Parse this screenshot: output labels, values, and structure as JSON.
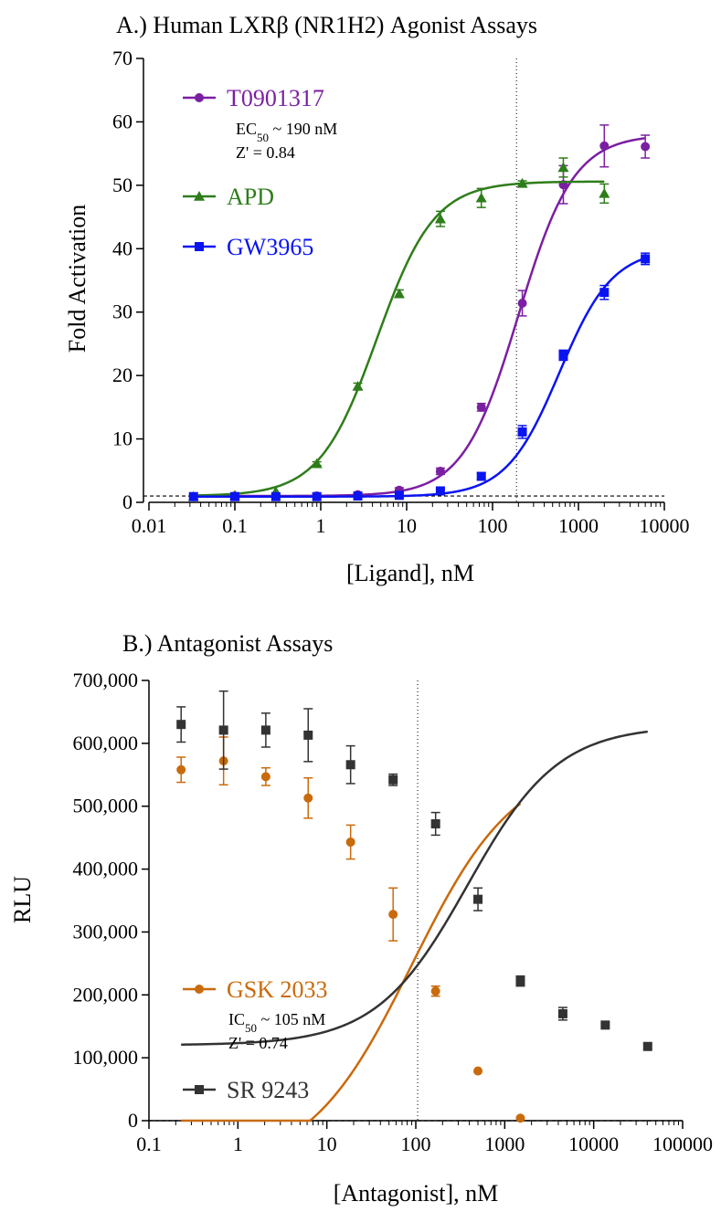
{
  "chart_data": [
    {
      "type": "scatter",
      "title": "A.)  Human LXRβ (NR1H2) Agonist Assays",
      "xlabel": "[Ligand], nM",
      "ylabel": "Fold Activation",
      "xscale": "log",
      "xlim": [
        0.01,
        10000
      ],
      "ylim": [
        0,
        70
      ],
      "xticks": [
        0.01,
        0.1,
        1,
        10,
        100,
        1000,
        10000
      ],
      "xtick_labels": [
        "0.01",
        "0.1",
        "1",
        "10",
        "100",
        "1000",
        "10000"
      ],
      "yticks": [
        0,
        10,
        20,
        30,
        40,
        50,
        60,
        70
      ],
      "ytick_labels": [
        "0",
        "10",
        "20",
        "30",
        "40",
        "50",
        "60",
        "70"
      ],
      "baseline_y": 1,
      "vline_x": 190,
      "legend_position": "top-left",
      "annotation_lines": [
        {
          "main": "EC",
          "sub": "50",
          "rest": " ~ 190 nM"
        },
        {
          "main": "Z' = 0.84",
          "sub": "",
          "rest": ""
        }
      ],
      "series": [
        {
          "name": "T0901317",
          "color": "#7b1fa2",
          "marker": "circle",
          "x": [
            0.033,
            0.1,
            0.3,
            0.9,
            2.7,
            8.2,
            24.7,
            74,
            222,
            667,
            2000,
            6000
          ],
          "y": [
            0.9,
            1.0,
            1.0,
            1.0,
            1.2,
            1.9,
            4.9,
            15.0,
            31.4,
            50.1,
            56.2,
            56.1
          ],
          "err": [
            0,
            0,
            0,
            0,
            0,
            0.4,
            0.5,
            0.6,
            2.0,
            3.0,
            3.3,
            1.8
          ],
          "fit": {
            "bottom": 1.0,
            "top": 58.0,
            "ec50": 200,
            "hill": 1.35
          }
        },
        {
          "name": "APD",
          "color": "#2e7d1a",
          "marker": "triangle",
          "x": [
            0.033,
            0.1,
            0.3,
            0.9,
            2.7,
            8.2,
            24.7,
            74,
            222,
            667,
            2000
          ],
          "y": [
            0.9,
            1.1,
            1.7,
            6.1,
            18.3,
            32.9,
            44.7,
            48.0,
            50.3,
            52.8,
            48.7
          ],
          "err": [
            0,
            0,
            0,
            0.3,
            0.5,
            0.6,
            1.2,
            1.5,
            0.4,
            1.5,
            1.5
          ],
          "fit": {
            "bottom": 1.0,
            "top": 50.6,
            "ec50": 4.5,
            "hill": 1.3
          }
        },
        {
          "name": "GW3965",
          "color": "#0a14f0",
          "marker": "square",
          "x": [
            0.033,
            0.1,
            0.3,
            0.9,
            2.7,
            8.2,
            24.7,
            74,
            222,
            667,
            2000,
            6000
          ],
          "y": [
            0.9,
            0.9,
            0.9,
            0.9,
            1.0,
            1.1,
            1.8,
            4.1,
            11.1,
            23.2,
            33.1,
            38.4
          ],
          "err": [
            0,
            0,
            0,
            0,
            0,
            0,
            0.3,
            0.5,
            1.0,
            0.8,
            1.1,
            0.9
          ],
          "fit": {
            "bottom": 0.9,
            "top": 40.0,
            "ec50": 600,
            "hill": 1.4
          }
        }
      ]
    },
    {
      "type": "scatter",
      "title": "B.) Antagonist Assays",
      "xlabel": "[Antagonist], nM",
      "ylabel": "RLU",
      "xscale": "log",
      "xlim": [
        0.1,
        100000
      ],
      "ylim": [
        0,
        700000
      ],
      "xticks": [
        0.1,
        1,
        10,
        100,
        1000,
        10000,
        100000
      ],
      "xtick_labels": [
        "0.1",
        "1",
        "10",
        "100",
        "1000",
        "10000",
        "100000"
      ],
      "yticks": [
        0,
        100000,
        200000,
        300000,
        400000,
        500000,
        600000,
        700000
      ],
      "ytick_labels": [
        "0",
        "100,000",
        "200,000",
        "300,000",
        "400,000",
        "500,000",
        "600,000",
        "700,000"
      ],
      "baseline_y": 0,
      "vline_x": 105,
      "legend_position": "bottom-left",
      "annotation_lines": [
        {
          "main": "IC",
          "sub": "50",
          "rest": " ~ 105 nM"
        },
        {
          "main": "Z' = 0.74",
          "sub": "",
          "rest": ""
        }
      ],
      "series": [
        {
          "name": "GSK 2033",
          "color": "#c96a0c",
          "marker": "circle",
          "x": [
            0.23,
            0.69,
            2.06,
            6.17,
            18.5,
            55.6,
            167,
            500,
            1500
          ],
          "y": [
            558000,
            572000,
            547000,
            513000,
            443000,
            328000,
            206000,
            79000,
            4000
          ],
          "err": [
            20000,
            38000,
            14000,
            32000,
            27000,
            42000,
            8000,
            0,
            0
          ],
          "fit": {
            "bottom": -80000,
            "top": 575000,
            "ec50": 90,
            "hill": 0.75
          }
        },
        {
          "name": "SR 9243",
          "color": "#333333",
          "marker": "square",
          "x": [
            0.23,
            0.69,
            2.06,
            6.17,
            18.5,
            55.6,
            167,
            500,
            1500,
            4500,
            13500,
            40500
          ],
          "y": [
            630000,
            621000,
            621000,
            613000,
            566000,
            542000,
            472000,
            352000,
            222000,
            170000,
            152000,
            118000
          ],
          "err": [
            28000,
            62000,
            27000,
            42000,
            30000,
            9000,
            18000,
            18000,
            8000,
            10000,
            0,
            0
          ],
          "fit": {
            "bottom": 120000,
            "top": 628000,
            "ec50": 380,
            "hill": 0.85
          }
        }
      ]
    }
  ]
}
